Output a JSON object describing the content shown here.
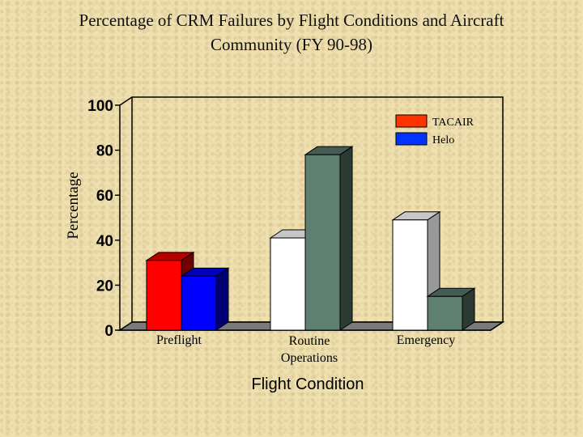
{
  "chart_data": {
    "type": "bar",
    "title_lines": [
      "Percentage of CRM Failures by Flight Conditions and Aircraft",
      "Community (FY 90-98)"
    ],
    "xlabel": "Flight Condition",
    "ylabel": "Percentage",
    "ylim": [
      0,
      100
    ],
    "yticks": [
      "0",
      "20",
      "40",
      "60",
      "80",
      "100"
    ],
    "categories": [
      {
        "lines": [
          "Preflight"
        ]
      },
      {
        "lines": [
          "Routine",
          "Operations"
        ]
      },
      {
        "lines": [
          "Emergency"
        ]
      }
    ],
    "series": [
      {
        "name": "TACAIR",
        "values": [
          null,
          41,
          49
        ],
        "values_preflight": 31
      },
      {
        "name": "Helo",
        "values": [
          null,
          78,
          15
        ],
        "values_preflight": 24
      }
    ],
    "bar_values": [
      [
        31,
        24
      ],
      [
        41,
        78
      ],
      [
        49,
        15
      ]
    ],
    "bar_colors": [
      [
        "#ff0000",
        "#0000ff"
      ],
      [
        "#ffffff",
        "#5f8070"
      ],
      [
        "#ffffff",
        "#5f8070"
      ]
    ],
    "legend": [
      {
        "label": "TACAIR",
        "color": "#ff3300"
      },
      {
        "label": "Helo",
        "color": "#0033ff"
      }
    ],
    "legend_position": "top-right",
    "grid": false
  }
}
